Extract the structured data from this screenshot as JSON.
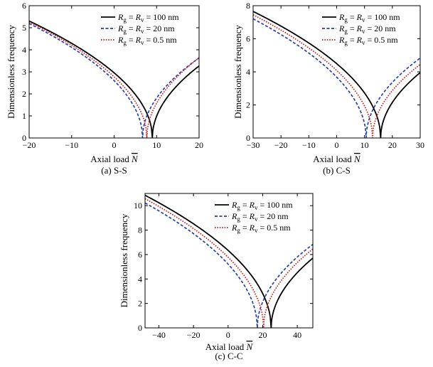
{
  "figure": {
    "caption_a": "(a) S-S",
    "caption_b": "(b) C-S",
    "caption_c": "(c) C-C"
  },
  "legend_entries": [
    {
      "sub": "g",
      "sub2": "v",
      "value": "100 nm"
    },
    {
      "sub": "g",
      "sub2": "v",
      "value": "20 nm"
    },
    {
      "sub": "g",
      "sub2": "v",
      "value": "0.5 nm"
    }
  ],
  "chart_data": [
    {
      "id": "a",
      "type": "line",
      "title": "",
      "caption": "(a) S-S",
      "xlabel": "Axial load N̄",
      "ylabel": "Dimensionless frequency",
      "xlim": [
        -20,
        20
      ],
      "ylim": [
        0,
        6
      ],
      "xticks": [
        -20,
        -10,
        0,
        10,
        20
      ],
      "yticks": [
        0,
        1,
        2,
        3,
        4,
        5,
        6
      ],
      "legend_position": "top-right",
      "series": [
        {
          "name": "Rg = Rv = 100 nm",
          "style": "solid",
          "color": "#000000",
          "n_crit": 9.0,
          "x": [
            -20,
            -15,
            -10,
            -5,
            0,
            5,
            8,
            9,
            10,
            15,
            20
          ],
          "y": [
            5.26,
            4.75,
            4.21,
            3.61,
            2.92,
            2.05,
            1.02,
            0,
            1.02,
            2.43,
            3.13
          ]
        },
        {
          "name": "Rg = Rv = 20 nm",
          "style": "dashed",
          "color": "#2a3eb1",
          "n_crit": 6.7,
          "x": [
            -20,
            -15,
            -10,
            -5,
            0,
            5,
            6.7,
            10,
            15,
            20
          ],
          "y": [
            5.05,
            4.52,
            3.95,
            3.33,
            2.59,
            1.49,
            0,
            1.86,
            2.88,
            3.52
          ]
        },
        {
          "name": "Rg = Rv = 0.5 nm",
          "style": "dotted",
          "color": "#cc1f1f",
          "n_crit": 7.7,
          "x": [
            -20,
            -15,
            -10,
            -5,
            0,
            5,
            7.7,
            10,
            15,
            20
          ],
          "y": [
            5.19,
            4.67,
            4.11,
            3.51,
            2.79,
            1.75,
            0,
            1.63,
            2.87,
            3.42
          ]
        }
      ]
    },
    {
      "id": "b",
      "type": "line",
      "title": "",
      "caption": "(b) C-S",
      "xlabel": "Axial load N̄",
      "ylabel": "Dimensionless frequency",
      "xlim": [
        -30,
        30
      ],
      "ylim": [
        0,
        8
      ],
      "xticks": [
        -30,
        -20,
        -10,
        0,
        10,
        20,
        30
      ],
      "yticks": [
        0,
        2,
        4,
        6,
        8
      ],
      "legend_position": "top-right",
      "series": [
        {
          "name": "Rg = Rv = 100 nm",
          "style": "solid",
          "color": "#000000",
          "n_crit": 15.8,
          "x": [
            -30,
            -20,
            -10,
            0,
            10,
            15.8,
            20,
            30
          ],
          "y": [
            7.35,
            6.56,
            5.64,
            4.55,
            2.93,
            0,
            2.17,
            3.92
          ]
        },
        {
          "name": "Rg = Rv = 20 nm",
          "style": "dashed",
          "color": "#2a3eb1",
          "n_crit": 10.6,
          "x": [
            -30,
            -20,
            -10,
            0,
            10,
            10.6,
            20,
            30
          ],
          "y": [
            7.05,
            6.13,
            5.09,
            3.68,
            0.92,
            0,
            3.4,
            4.78
          ]
        },
        {
          "name": "Rg = Rv = 0.5 nm",
          "style": "dotted",
          "color": "#cc1f1f",
          "n_crit": 12.9,
          "x": [
            -30,
            -20,
            -10,
            0,
            10,
            12.9,
            20,
            30
          ],
          "y": [
            7.3,
            6.41,
            5.45,
            4.19,
            1.96,
            0,
            2.95,
            4.32
          ]
        }
      ]
    },
    {
      "id": "c",
      "type": "line",
      "title": "",
      "caption": "(c) C-C",
      "xlabel": "Axial load N̄",
      "ylabel": "Dimensionless frequency",
      "xlim": [
        -48,
        49
      ],
      "ylim": [
        0,
        11
      ],
      "xticks": [
        -40,
        -20,
        0,
        20,
        40
      ],
      "yticks": [
        0,
        2,
        4,
        6,
        8,
        10
      ],
      "legend_position": "top-right",
      "series": [
        {
          "name": "Rg = Rv = 100 nm",
          "style": "solid",
          "color": "#000000",
          "n_crit": 24.9,
          "x": [
            -48,
            -40,
            -20,
            0,
            20,
            24.9,
            30,
            40,
            49
          ],
          "y": [
            10.52,
            9.92,
            8.33,
            6.45,
            3.0,
            0,
            2.51,
            4.59,
            5.87
          ]
        },
        {
          "name": "Rg = Rv = 20 nm",
          "style": "dashed",
          "color": "#2a3eb1",
          "n_crit": 16.9,
          "x": [
            -48,
            -40,
            -20,
            0,
            16.9,
            20,
            30,
            40,
            49
          ],
          "y": [
            10.0,
            9.4,
            7.72,
            5.42,
            0,
            2.06,
            4.24,
            5.95,
            7.06
          ]
        },
        {
          "name": "Rg = Rv = 0.5 nm",
          "style": "dotted",
          "color": "#cc1f1f",
          "n_crit": 20.5,
          "x": [
            -48,
            -40,
            -20,
            0,
            20,
            20.5,
            30,
            40,
            49
          ],
          "y": [
            10.34,
            9.7,
            8.0,
            5.97,
            0.93,
            0,
            3.65,
            5.36,
            6.57
          ]
        }
      ]
    }
  ]
}
